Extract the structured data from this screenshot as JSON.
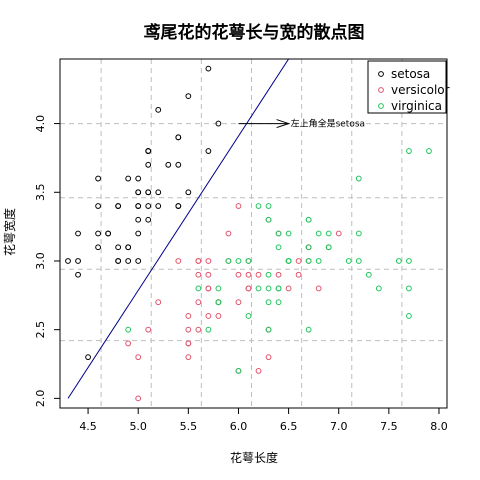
{
  "chart_data": {
    "type": "scatter",
    "title": "鸢尾花的花萼长与宽的散点图",
    "xlabel": "花萼长度",
    "ylabel": "花萼宽度",
    "xlim": [
      4.22,
      8.08
    ],
    "ylim": [
      1.93,
      4.47
    ],
    "xticks": [
      4.5,
      5.0,
      5.5,
      6.0,
      6.5,
      7.0,
      7.5,
      8.0
    ],
    "xtick_labels": [
      "4.5",
      "5.0",
      "5.5",
      "6.0",
      "6.5",
      "7.0",
      "7.5",
      "8.0"
    ],
    "yticks": [
      2.0,
      2.5,
      3.0,
      3.5,
      4.0
    ],
    "ytick_labels": [
      "2.0",
      "2.5",
      "3.0",
      "3.5",
      "4.0"
    ],
    "grid": true,
    "grid_x": [
      4.63,
      5.13,
      5.63,
      6.13,
      6.63,
      7.13,
      7.63
    ],
    "grid_y": [
      2.42,
      2.94,
      3.46,
      4.0
    ],
    "legend_position": "top-right",
    "series": [
      {
        "name": "setosa",
        "color": "#000000",
        "x": [
          5.1,
          4.9,
          4.7,
          4.6,
          5.0,
          5.4,
          4.6,
          5.0,
          4.4,
          4.9,
          5.4,
          4.8,
          4.8,
          4.3,
          5.8,
          5.7,
          5.4,
          5.1,
          5.7,
          5.1,
          5.4,
          5.1,
          4.6,
          5.1,
          4.8,
          5.0,
          5.0,
          5.2,
          5.2,
          4.7,
          4.8,
          5.4,
          5.2,
          5.5,
          4.9,
          5.0,
          5.5,
          4.9,
          4.4,
          5.1,
          5.0,
          4.5,
          4.4,
          5.0,
          5.1,
          4.8,
          5.1,
          4.6,
          5.3,
          5.0
        ],
        "y": [
          3.5,
          3.0,
          3.2,
          3.1,
          3.6,
          3.9,
          3.4,
          3.4,
          2.9,
          3.1,
          3.7,
          3.4,
          3.0,
          3.0,
          4.0,
          4.4,
          3.9,
          3.5,
          3.8,
          3.8,
          3.4,
          3.7,
          3.6,
          3.3,
          3.4,
          3.0,
          3.4,
          3.5,
          3.4,
          3.2,
          3.1,
          3.4,
          4.1,
          4.2,
          3.1,
          3.2,
          3.5,
          3.6,
          3.0,
          3.4,
          3.5,
          2.3,
          3.2,
          3.5,
          3.8,
          3.0,
          3.8,
          3.2,
          3.7,
          3.3
        ]
      },
      {
        "name": "versicolor",
        "color": "#df536b",
        "x": [
          7.0,
          6.4,
          6.9,
          5.5,
          6.5,
          5.7,
          6.3,
          4.9,
          6.6,
          5.2,
          5.0,
          5.9,
          6.0,
          6.1,
          5.6,
          6.7,
          5.6,
          5.8,
          6.2,
          5.6,
          5.9,
          6.1,
          6.3,
          6.1,
          6.4,
          6.6,
          6.8,
          6.7,
          6.0,
          5.7,
          5.5,
          5.5,
          5.8,
          6.0,
          5.4,
          6.0,
          6.7,
          6.3,
          5.6,
          5.5,
          5.5,
          6.1,
          5.8,
          5.0,
          5.6,
          5.7,
          5.7,
          6.2,
          5.1,
          5.7
        ],
        "y": [
          3.2,
          3.2,
          3.1,
          2.3,
          2.8,
          2.8,
          3.3,
          2.4,
          2.9,
          2.7,
          2.0,
          3.0,
          2.2,
          2.9,
          2.9,
          3.1,
          3.0,
          2.7,
          2.2,
          2.5,
          3.2,
          2.8,
          2.5,
          2.8,
          2.9,
          3.0,
          2.8,
          3.0,
          2.9,
          2.6,
          2.4,
          2.4,
          2.7,
          2.7,
          3.0,
          3.4,
          3.1,
          2.3,
          3.0,
          2.5,
          2.6,
          3.0,
          2.6,
          2.3,
          2.7,
          3.0,
          2.9,
          2.9,
          2.5,
          2.8
        ]
      },
      {
        "name": "virginica",
        "color": "#28e2e5",
        "marker_color": "#22c55e",
        "x": [
          6.3,
          5.8,
          7.1,
          6.3,
          6.5,
          7.6,
          4.9,
          7.3,
          6.7,
          7.2,
          6.5,
          6.4,
          6.8,
          5.7,
          5.8,
          6.4,
          6.5,
          7.7,
          7.7,
          6.0,
          6.9,
          5.6,
          7.7,
          6.3,
          6.7,
          7.2,
          6.2,
          6.1,
          6.4,
          7.2,
          7.4,
          7.9,
          6.4,
          6.3,
          6.1,
          7.7,
          6.3,
          6.4,
          6.0,
          6.9,
          6.7,
          6.9,
          5.8,
          6.8,
          6.7,
          6.7,
          6.3,
          6.5,
          6.2,
          5.9
        ],
        "y": [
          3.3,
          2.7,
          3.0,
          2.9,
          3.0,
          3.0,
          2.5,
          2.9,
          2.5,
          3.6,
          3.2,
          2.7,
          3.0,
          2.5,
          2.8,
          3.2,
          3.0,
          3.8,
          2.6,
          2.2,
          3.2,
          2.8,
          2.8,
          2.7,
          3.3,
          3.2,
          2.8,
          3.0,
          2.8,
          3.0,
          2.8,
          3.8,
          2.8,
          2.8,
          2.6,
          3.0,
          3.4,
          3.1,
          3.0,
          3.1,
          3.1,
          3.1,
          2.7,
          3.2,
          3.3,
          3.0,
          2.5,
          3.0,
          3.4,
          3.0
        ]
      }
    ],
    "reference_line": {
      "color": "#00008b",
      "x": [
        4.3,
        6.5
      ],
      "y": [
        2.0,
        4.47
      ]
    },
    "annotation": {
      "text": "左上角全是setosa",
      "arrow_from": [
        6.5,
        4.0
      ],
      "arrow_to": [
        6.0,
        4.0
      ]
    }
  }
}
